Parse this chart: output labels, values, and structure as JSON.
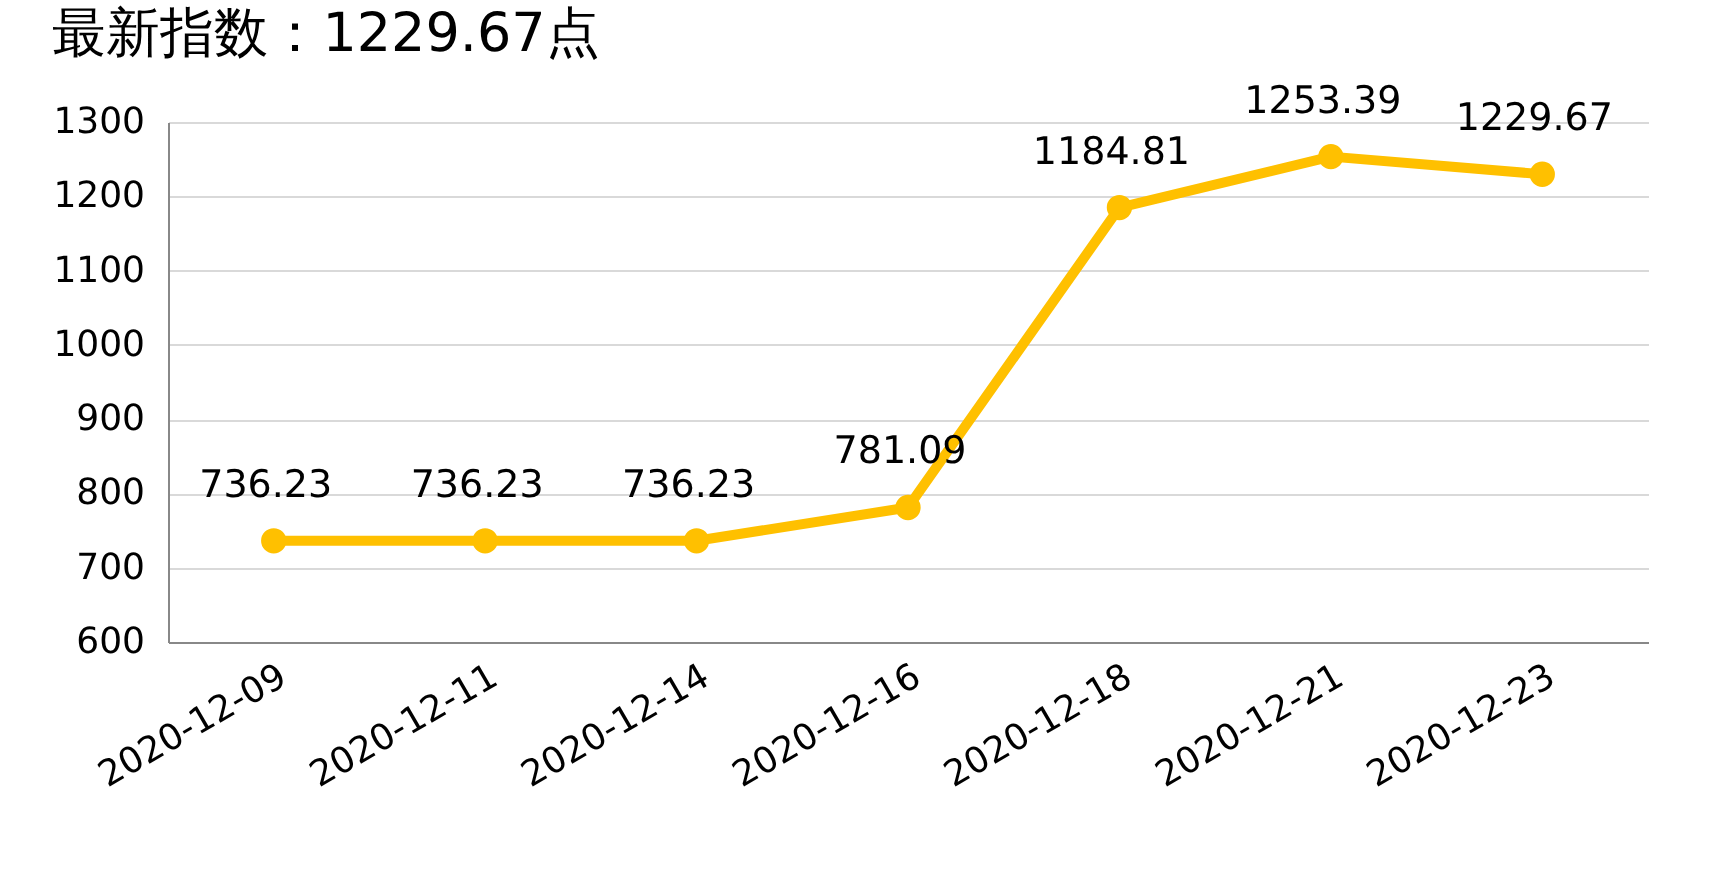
{
  "chart_data": {
    "type": "line",
    "title": "最新指数：1229.67点",
    "categories": [
      "2020-12-09",
      "2020-12-11",
      "2020-12-14",
      "2020-12-16",
      "2020-12-18",
      "2020-12-21",
      "2020-12-23"
    ],
    "series": [
      {
        "color": "#ffc000",
        "values": [
          736.23,
          736.23,
          736.23,
          781.09,
          1184.81,
          1253.39,
          1229.67
        ]
      }
    ],
    "ylim": [
      600,
      1300
    ],
    "yticks": [
      600,
      700,
      800,
      900,
      1000,
      1100,
      1200,
      1300
    ],
    "grid": "y",
    "marker": "circle",
    "line_style": "solid",
    "data_labels": true
  }
}
